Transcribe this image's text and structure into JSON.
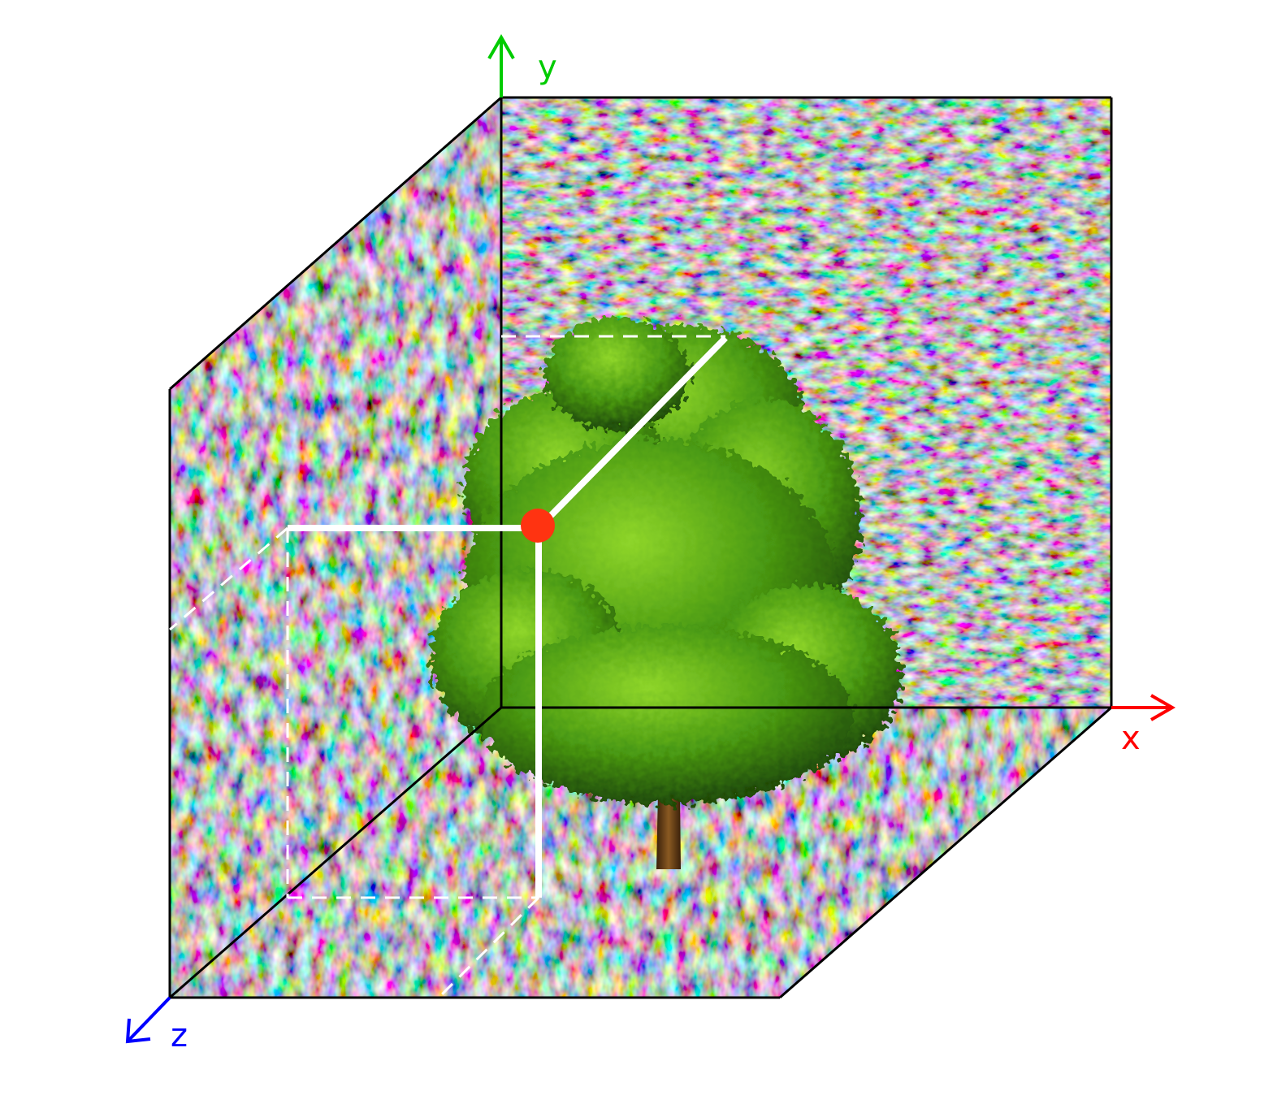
{
  "axes": {
    "x": {
      "label": "x",
      "color": "#ff0000"
    },
    "y": {
      "label": "y",
      "color": "#00cc00"
    },
    "z": {
      "label": "z",
      "color": "#0000ff"
    }
  },
  "colors": {
    "cube_edge": "#000000",
    "guide_lines": "#ffffff",
    "sample_point": "#ff3311",
    "foliage": "#4a9a12",
    "trunk": "#6b3d14"
  },
  "icons": {
    "scene_object": "tree-icon",
    "sample_point": "point-marker-icon"
  }
}
